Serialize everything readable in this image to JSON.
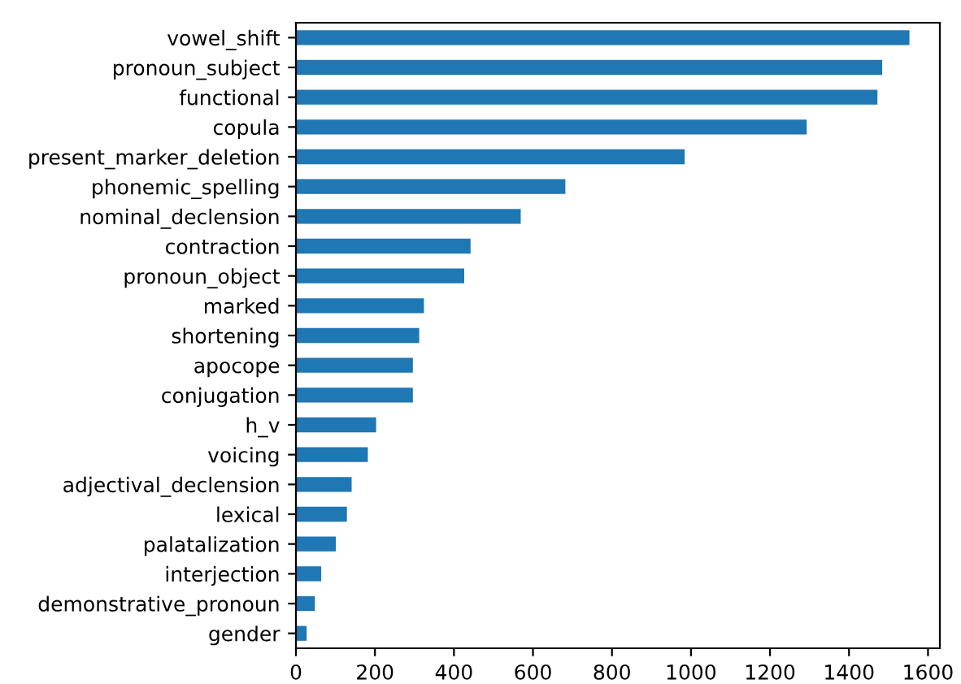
{
  "chart_data": {
    "type": "bar",
    "orientation": "horizontal",
    "categories": [
      "vowel_shift",
      "pronoun_subject",
      "functional",
      "copula",
      "present_marker_deletion",
      "phonemic_spelling",
      "nominal_declension",
      "contraction",
      "pronoun_object",
      "marked",
      "shortening",
      "apocope",
      "conjugation",
      "h_v",
      "voicing",
      "adjectival_declension",
      "lexical",
      "palatalization",
      "interjection",
      "demonstrative_pronoun",
      "gender"
    ],
    "values": [
      1553,
      1484,
      1472,
      1293,
      984,
      682,
      569,
      442,
      426,
      324,
      312,
      296,
      296,
      203,
      182,
      141,
      129,
      101,
      64,
      48,
      27
    ],
    "color": "#1f77b4",
    "xlim": [
      0,
      1630
    ],
    "xticks": [
      0,
      200,
      400,
      600,
      800,
      1000,
      1200,
      1400,
      1600
    ],
    "grid": false,
    "legend": false
  }
}
